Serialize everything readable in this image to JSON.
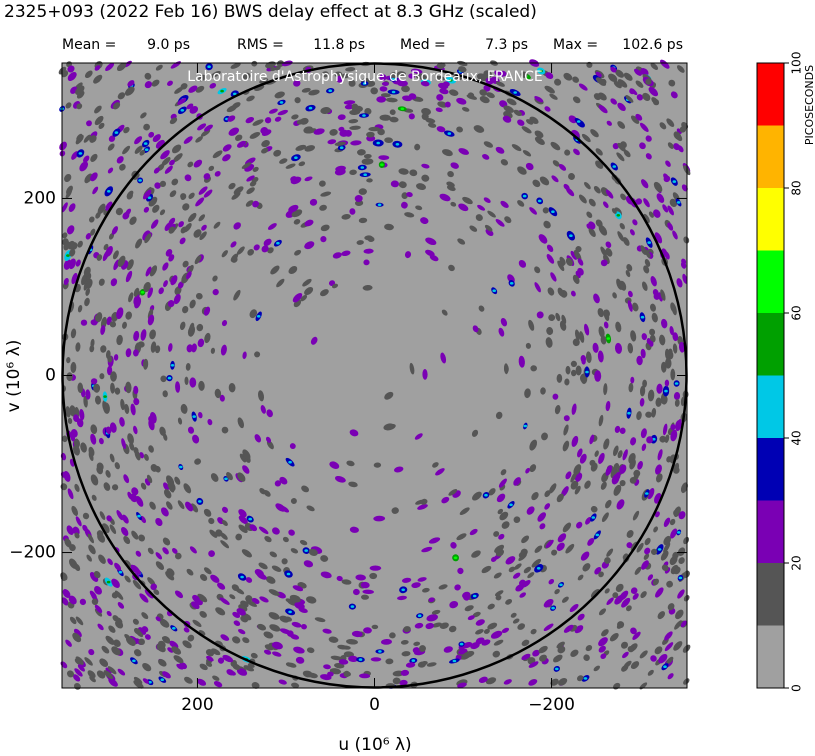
{
  "chart_data": {
    "type": "map",
    "title": "2325+093  (2022 Feb 16)   BWS delay effect at  8.3 GHz (scaled)",
    "stats": [
      {
        "name": "Mean =",
        "value": "9.0 ps"
      },
      {
        "name": "RMS =",
        "value": "11.8 ps"
      },
      {
        "name": "Med =",
        "value": "7.3 ps"
      },
      {
        "name": "Max =",
        "value": "102.6 ps"
      }
    ],
    "credit": "Laboratoire d'Astrophysique de Bordeaux, FRANCE",
    "xlabel": "u  (10⁶ λ)",
    "ylabel": "v  (10⁶ λ)",
    "xlim": [
      353,
      -353
    ],
    "ylim": [
      -353,
      353
    ],
    "xticks": [
      200,
      0,
      {
        "value": -200,
        "label": "−200"
      }
    ],
    "yticks": [
      {
        "value": -200,
        "label": "−200"
      },
      0,
      200
    ],
    "colorbar": {
      "label": "PICOSECONDS",
      "levels": [
        0,
        10,
        20,
        30,
        40,
        50,
        60,
        70,
        80,
        90,
        100
      ],
      "colors": [
        "#a0a0a0",
        "#555555",
        "#7a00b4",
        "#0000b4",
        "#00c8e6",
        "#00a000",
        "#00ff00",
        "#ffff00",
        "#ffb400",
        "#ff0000"
      ],
      "ticks": [
        0,
        20,
        40,
        60,
        80,
        100
      ]
    }
  }
}
